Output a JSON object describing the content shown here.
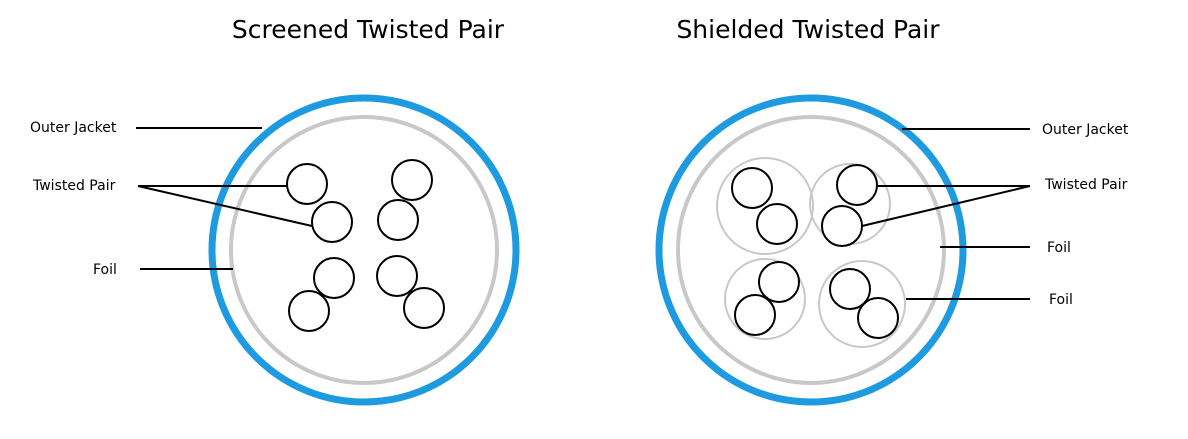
{
  "screened": {
    "title": "Screened Twisted Pair",
    "labels": {
      "outer_jacket": "Outer Jacket",
      "twisted_pair": "Twisted Pair",
      "foil": "Foil"
    }
  },
  "shielded": {
    "title": "Shielded Twisted Pair",
    "labels": {
      "outer_jacket": "Outer Jacket",
      "twisted_pair": "Twisted Pair",
      "foil_overall": "Foil",
      "foil_pair": "Foil"
    }
  },
  "colors": {
    "outer_jacket": "#1e9be0",
    "foil": "#c8c8c8",
    "conductor": "#000000",
    "leader_line": "#000000"
  }
}
